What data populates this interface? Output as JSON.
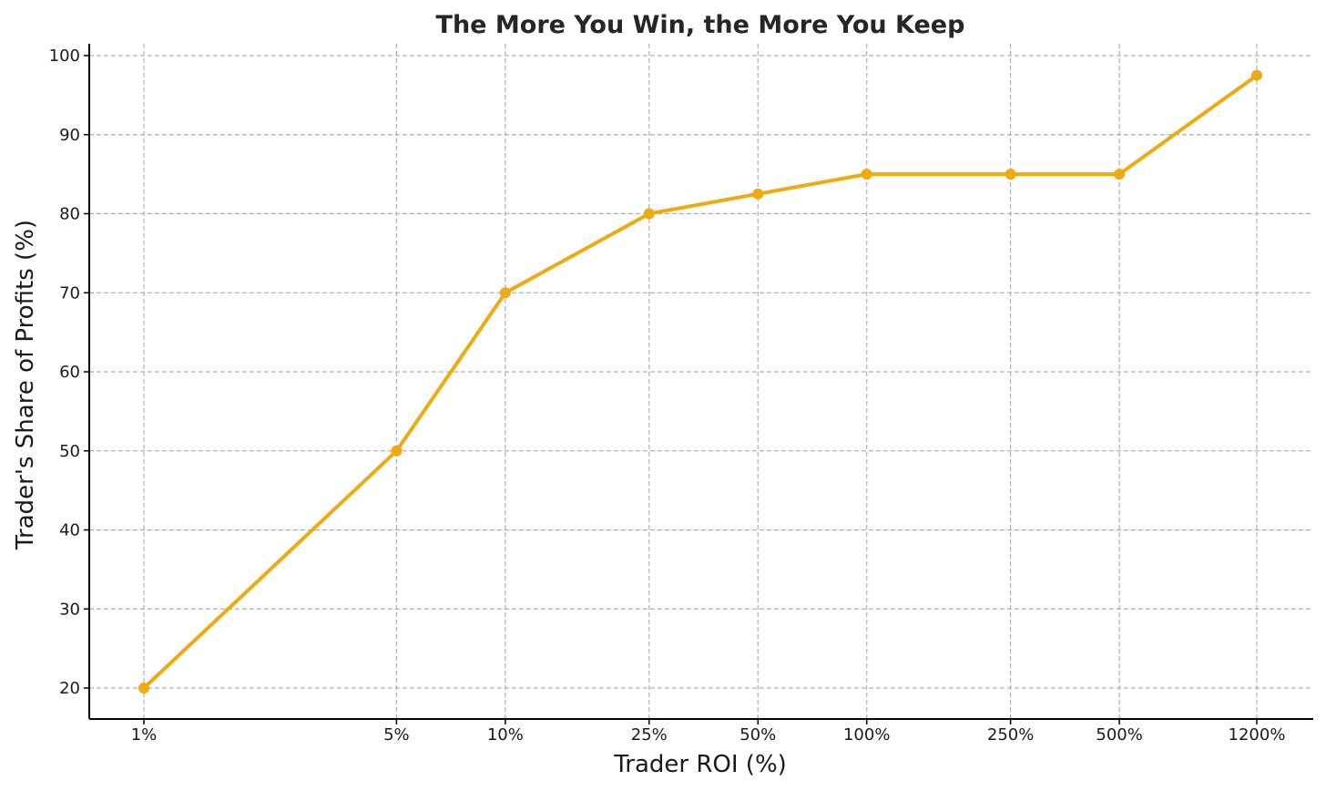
{
  "chart_data": {
    "type": "line",
    "title": "The More You Win, the More You Keep",
    "xlabel": "Trader ROI (%)",
    "ylabel": "Trader's Share of Profits (%)",
    "x": [
      1,
      5,
      10,
      25,
      50,
      100,
      250,
      500,
      1200
    ],
    "x_tick_labels": [
      "1%",
      "5%",
      "10%",
      "25%",
      "50%",
      "100%",
      "250%",
      "500%",
      "1200%"
    ],
    "y_ticks": [
      20,
      30,
      40,
      50,
      60,
      70,
      80,
      90,
      100
    ],
    "ylim": [
      16,
      101.5
    ],
    "grid": true,
    "series": [
      {
        "values": [
          20,
          50,
          70,
          80,
          82.5,
          85,
          85,
          85,
          97.5
        ],
        "color": "#f0a90f"
      }
    ]
  }
}
